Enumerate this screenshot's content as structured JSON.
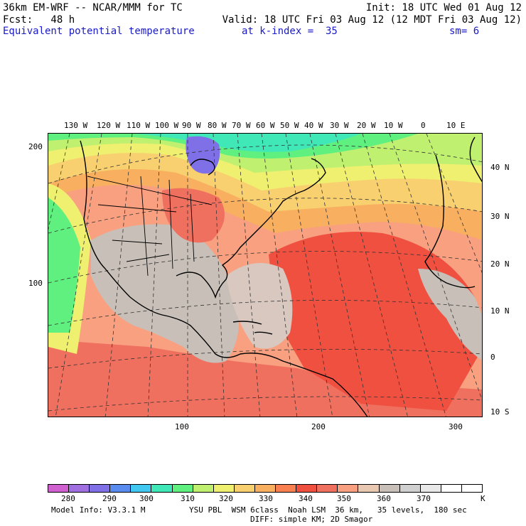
{
  "header": {
    "model_title": "36km EM-WRF -- NCAR/MMM for TC",
    "init": "Init: 18 UTC Wed 01 Aug 12",
    "fcst": "Fcst:   48 h",
    "valid": "Valid: 18 UTC Fri 03 Aug 12 (12 MDT Fri 03 Aug 12)",
    "field_name": "Equivalent potential temperature",
    "level": "at k-index =  35",
    "smooth": "sm= 6"
  },
  "lon_labels": [
    "130 W",
    "120 W",
    "110 W",
    "100 W",
    "90 W",
    "80 W",
    "70 W",
    "60 W",
    "50 W",
    "40 W",
    "30 W",
    "20 W",
    "10 W",
    "0",
    "10 E"
  ],
  "lat_labels": [
    "40 N",
    "30 N",
    "20 N",
    "10 N",
    "0",
    "10 S"
  ],
  "grid_y_labels": [
    "200",
    "100"
  ],
  "grid_x_labels": [
    "100",
    "200",
    "300"
  ],
  "legend": {
    "colors": [
      "#d060d0",
      "#a070e0",
      "#8070e8",
      "#5a8cf0",
      "#40c8f0",
      "#40e8b8",
      "#60f080",
      "#c0f070",
      "#f0f070",
      "#f8d070",
      "#f8b060",
      "#f88050",
      "#f05040",
      "#f07060",
      "#f8a080",
      "#e8c8b0",
      "#c8c0b8",
      "#d0d0d0",
      "#e8e8e8",
      "#ffffff",
      "#ffffff"
    ],
    "labels": [
      "280",
      "290",
      "300",
      "310",
      "320",
      "330",
      "340",
      "350",
      "360",
      "370",
      "K"
    ]
  },
  "footer": {
    "model_info": "Model Info: V3.3.1 M",
    "physics": "YSU PBL  WSM 6class  Noah LSM  36 km,   35 levels,  180 sec",
    "diff": "DIFF: simple KM; 2D Smagor"
  }
}
